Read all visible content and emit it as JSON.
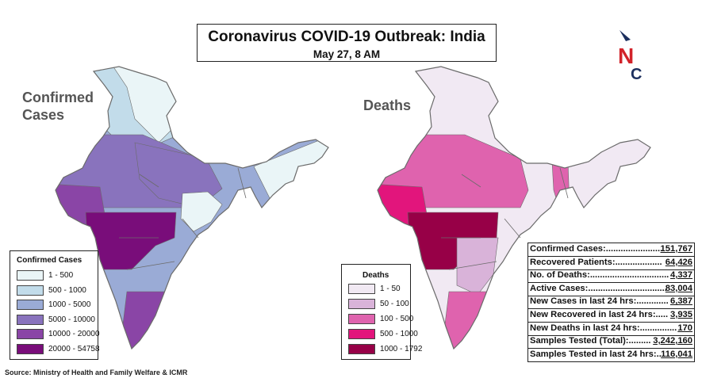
{
  "header": {
    "title": "Coronavirus COVID-19 Outbreak: India",
    "subtitle": "May 27, 8 AM",
    "logo_letters": [
      "N",
      "C"
    ]
  },
  "maps": {
    "confirmed": {
      "heading": [
        "Confirmed",
        "Cases"
      ],
      "legend_title": "Confirmed Cases",
      "bins": [
        {
          "range": "1 - 500",
          "color": "#eaf5f7"
        },
        {
          "range": "500 - 1000",
          "color": "#c2dcea"
        },
        {
          "range": "1000 - 5000",
          "color": "#9aabd6"
        },
        {
          "range": "5000 - 10000",
          "color": "#8973bd"
        },
        {
          "range": "10000 - 20000",
          "color": "#8a45a6"
        },
        {
          "range": "20000 - 54758",
          "color": "#790d7a"
        }
      ]
    },
    "deaths": {
      "heading": [
        "Deaths"
      ],
      "legend_title": "Deaths",
      "bins": [
        {
          "range": "1 - 50",
          "color": "#f1e9f3"
        },
        {
          "range": "50 - 100",
          "color": "#d9b3d9"
        },
        {
          "range": "100 - 500",
          "color": "#df63ae"
        },
        {
          "range": "500 - 1000",
          "color": "#e2157c"
        },
        {
          "range": "1000 - 1792",
          "color": "#970047"
        }
      ]
    }
  },
  "stats": [
    {
      "label": "Confirmed Cases:.......................",
      "value": "151,767"
    },
    {
      "label": "Recovered Patients:...................",
      "value": "64,426"
    },
    {
      "label": "No. of Deaths:................................",
      "value": "4,337"
    },
    {
      "label": "Active Cases:................................",
      "value": "83,004"
    },
    {
      "label": "New Cases in last 24 hrs:.............",
      "value": "6,387"
    },
    {
      "label": "New Recovered in last 24 hrs:.....",
      "value": "3,935"
    },
    {
      "label": "New Deaths in last 24 hrs:...............",
      "value": "170"
    },
    {
      "label": "Samples Tested (Total):.........",
      "value": "3,242,160"
    },
    {
      "label": "Samples Tested in last 24 hrs:..",
      "value": "116,041"
    }
  ],
  "source": "Source: Ministry of Health and Family Welfare & ICMR",
  "colors": {
    "logo_navy": "#1c2f5e",
    "logo_red": "#d2232a",
    "border": "#6b6b6b"
  }
}
